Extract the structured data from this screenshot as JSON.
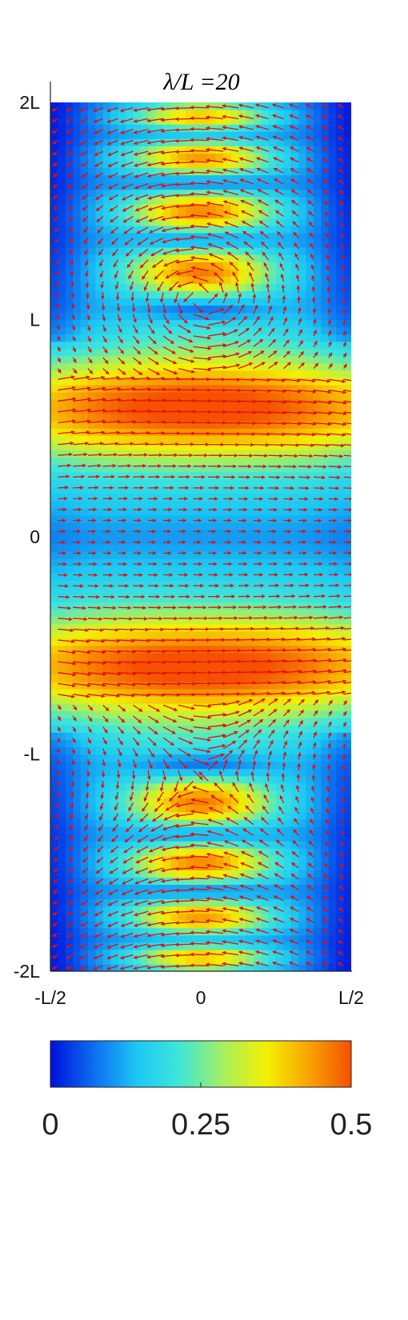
{
  "chart_data": [
    {
      "type": "heatmap",
      "subtype": "vector-field-over-magnitude",
      "title": "λ/L =20",
      "xlabel": "",
      "ylabel": "",
      "xlim": [
        -0.5,
        0.5
      ],
      "ylim": [
        -2,
        2
      ],
      "x_ticks": [
        {
          "value": -0.5,
          "label": "-L/2"
        },
        {
          "value": 0,
          "label": "0"
        },
        {
          "value": 0.5,
          "label": "L/2"
        }
      ],
      "y_ticks": [
        {
          "value": 2,
          "label": "2L"
        },
        {
          "value": 1,
          "label": "L"
        },
        {
          "value": 0,
          "label": "0"
        },
        {
          "value": -1,
          "label": "-L"
        },
        {
          "value": -2,
          "label": "-2L"
        }
      ],
      "field_description": {
        "blue_regions": [
          "left and right edges near |y| > 1",
          "center near y = 0",
          "small pockets at y ≈ ±1.05, ±1.3, ±1.55, ±1.8 near x = 0"
        ],
        "yellow_bands": [
          0.6,
          -0.6,
          1.2,
          -1.2,
          1.5,
          -1.5,
          1.8,
          -1.8
        ],
        "band_peak_magnitude": 0.4,
        "center_minimum_magnitude": 0.05
      },
      "vectors": {
        "color": "#e01010",
        "grid_spacing_y_units": 0.05,
        "grid_spacing_x_units": 0.05,
        "pattern": "horizontal arrows near y=0, arcing vortex-like arrows in lobes for |y| > 0.8"
      },
      "grid": false
    },
    {
      "type": "heatmap",
      "subtype": "colorbar",
      "colormap": "jet",
      "colors": [
        "#0010dc",
        "#0b6cf0",
        "#1cc8f4",
        "#3fe6d9",
        "#a8f05a",
        "#f4f000",
        "#f7a300",
        "#f65000"
      ],
      "range": [
        0,
        0.5
      ],
      "ticks": [
        {
          "value": 0,
          "label": "0"
        },
        {
          "value": 0.25,
          "label": "0.25"
        },
        {
          "value": 0.5,
          "label": "0.5"
        }
      ]
    }
  ]
}
